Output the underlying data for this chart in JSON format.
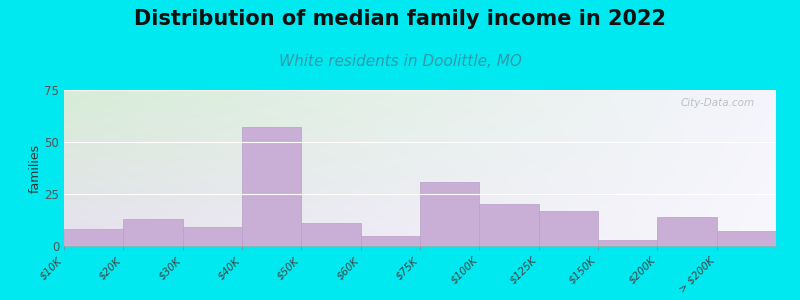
{
  "title": "Distribution of median family income in 2022",
  "subtitle": "White residents in Doolittle, MO",
  "ylabel": "families",
  "categories": [
    "$10K",
    "$20K",
    "$30K",
    "$40K",
    "$50K",
    "$60K",
    "$75K",
    "$100K",
    "$125K",
    "$150K",
    "$200K",
    "> $200K"
  ],
  "values": [
    8,
    13,
    9,
    57,
    11,
    5,
    31,
    20,
    17,
    3,
    14,
    7
  ],
  "bar_color": "#c9aed6",
  "bar_edge_color": "#b8a0c8",
  "background_outer": "#00e8f0",
  "background_top_left": "#d8ecd8",
  "background_top_right": "#f5f5fc",
  "background_bottom_left": "#e8e0f0",
  "background_bottom_right": "#f8f8ff",
  "ylim": [
    0,
    75
  ],
  "yticks": [
    0,
    25,
    50,
    75
  ],
  "title_fontsize": 15,
  "subtitle_fontsize": 11,
  "subtitle_color": "#3399aa",
  "ylabel_fontsize": 9,
  "watermark_text": "City-Data.com"
}
